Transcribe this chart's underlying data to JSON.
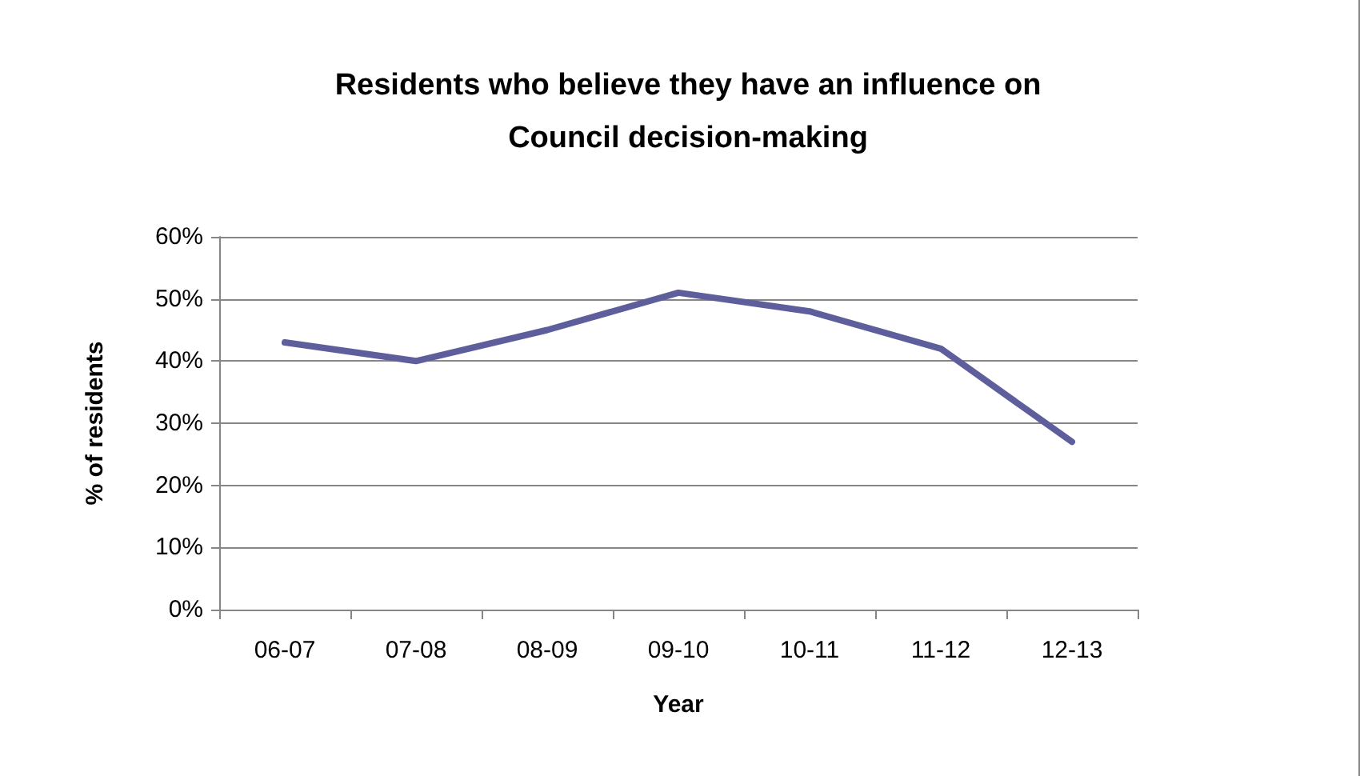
{
  "chart_data": {
    "type": "line",
    "title": "Residents who believe they have an influence on\nCouncil decision-making",
    "xlabel": "Year",
    "ylabel": "% of residents",
    "categories": [
      "06-07",
      "07-08",
      "08-09",
      "09-10",
      "10-11",
      "11-12",
      "12-13"
    ],
    "series": [
      {
        "color": "#5e5e9c",
        "values": [
          43,
          40,
          45,
          51,
          48,
          42,
          27
        ]
      }
    ],
    "ylim": [
      0,
      60
    ],
    "yticks": [
      {
        "value": 0,
        "label": "0%"
      },
      {
        "value": 10,
        "label": "10%"
      },
      {
        "value": 20,
        "label": "20%"
      },
      {
        "value": 30,
        "label": "30%"
      },
      {
        "value": 40,
        "label": "40%"
      },
      {
        "value": 50,
        "label": "50%"
      },
      {
        "value": 60,
        "label": "60%"
      }
    ],
    "grid": "y",
    "marker": "none",
    "line_style": "solid"
  }
}
